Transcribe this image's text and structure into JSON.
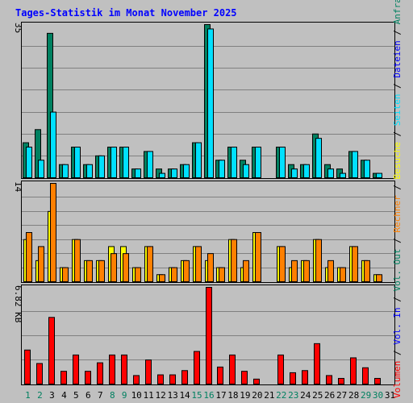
{
  "chart_data": {
    "type": "bar",
    "title": "Tages-Statistik im Monat November 2025",
    "x": [
      "1",
      "2",
      "3",
      "4",
      "5",
      "6",
      "7",
      "8",
      "9",
      "10",
      "11",
      "12",
      "13",
      "14",
      "15",
      "16",
      "17",
      "18",
      "19",
      "20",
      "21",
      "22",
      "23",
      "24",
      "25",
      "26",
      "27",
      "28",
      "29",
      "30",
      "31"
    ],
    "weekend_days": [
      "1",
      "2",
      "8",
      "9",
      "15",
      "16",
      "22",
      "23",
      "29",
      "30"
    ],
    "panels": [
      {
        "id": "top",
        "ylim": [
          0,
          35
        ],
        "max_label": "35",
        "series": [
          {
            "name": "Anfragen",
            "color": "#008060",
            "values": [
              8,
              11,
              33,
              3,
              7,
              3,
              5,
              7,
              7,
              2,
              6,
              2,
              2,
              3,
              8,
              35,
              4,
              7,
              4,
              7,
              0,
              7,
              3,
              3,
              10,
              3,
              2,
              6,
              4,
              1,
              0
            ]
          },
          {
            "name": "Dateien",
            "color": "#00e0ff",
            "values": [
              7,
              4,
              15,
              3,
              7,
              3,
              5,
              7,
              7,
              2,
              6,
              1,
              2,
              3,
              8,
              34,
              4,
              7,
              3,
              7,
              0,
              7,
              2,
              3,
              9,
              2,
              1,
              6,
              4,
              1,
              0
            ]
          }
        ]
      },
      {
        "id": "middle",
        "ylim": [
          0,
          14
        ],
        "max_label": "14",
        "series": [
          {
            "name": "Seiten",
            "color": "#00e0ff",
            "values": [
              0,
              0,
              0,
              0,
              0,
              0,
              0,
              0,
              0,
              0,
              0,
              0,
              0,
              0,
              0,
              0,
              0,
              0,
              0,
              0,
              0,
              0,
              0,
              0,
              0,
              0,
              0,
              0,
              0,
              0,
              0
            ]
          },
          {
            "name": "Besuche",
            "color": "#ffff00",
            "values": [
              6,
              3,
              10,
              2,
              6,
              3,
              3,
              5,
              5,
              2,
              5,
              1,
              2,
              3,
              5,
              3,
              2,
              6,
              2,
              7,
              0,
              5,
              2,
              3,
              6,
              2,
              2,
              5,
              3,
              1,
              0
            ]
          },
          {
            "name": "Rechner",
            "color": "#ff8000",
            "values": [
              7,
              5,
              14,
              2,
              6,
              3,
              3,
              4,
              4,
              2,
              5,
              1,
              2,
              3,
              5,
              4,
              2,
              6,
              3,
              7,
              0,
              5,
              3,
              3,
              6,
              3,
              2,
              5,
              3,
              1,
              0
            ]
          }
        ]
      },
      {
        "id": "bottom",
        "ylim": [
          0,
          6.82
        ],
        "max_label": "6.82 KB",
        "series": [
          {
            "name": "Volumen",
            "color": "#ff0000",
            "values": [
              2.4,
              1.45,
              4.7,
              0.9,
              2.05,
              0.9,
              1.5,
              2.05,
              2.05,
              0.6,
              1.7,
              0.65,
              0.65,
              0.95,
              2.3,
              6.82,
              1.2,
              2.05,
              0.9,
              0.35,
              0,
              2.05,
              0.8,
              0.95,
              2.85,
              0.6,
              0.4,
              1.85,
              1.15,
              0.4,
              0
            ]
          }
        ]
      }
    ],
    "right_legend": [
      {
        "text": "Volumen",
        "color": "#ff0000"
      },
      {
        "text": " / ",
        "color": "#000000"
      },
      {
        "text": "Vol. In",
        "color": "#0000ff"
      },
      {
        "text": " / ",
        "color": "#000000"
      },
      {
        "text": "Vol. Out",
        "color": "#008060"
      },
      {
        "text": " / ",
        "color": "#000000"
      },
      {
        "text": "Rechner",
        "color": "#ff8000"
      },
      {
        "text": " / ",
        "color": "#000000"
      },
      {
        "text": "Besuche",
        "color": "#ffff00"
      },
      {
        "text": " / ",
        "color": "#000000"
      },
      {
        "text": "Seiten",
        "color": "#00e0ff"
      },
      {
        "text": " / ",
        "color": "#000000"
      },
      {
        "text": "Dateien",
        "color": "#0000ff"
      },
      {
        "text": " / ",
        "color": "#000000"
      },
      {
        "text": "Anfragen",
        "color": "#008060"
      }
    ],
    "colors": {
      "background": "#c0c0c0",
      "gridline": "#808080",
      "weekday_label": "#000000",
      "weekend_label": "#008060",
      "title": "#0000ff"
    }
  }
}
